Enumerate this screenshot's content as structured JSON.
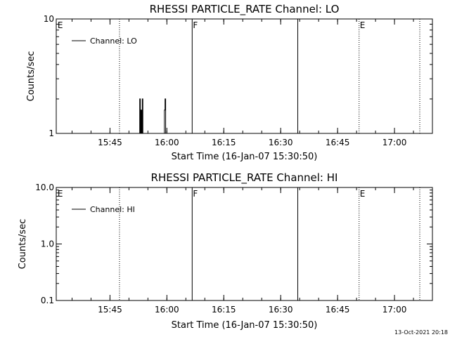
{
  "chart_data": [
    {
      "type": "line",
      "title": "RHESSI PARTICLE_RATE Channel: LO",
      "xlabel": "Start Time (16-Jan-07 15:30:50)",
      "ylabel": "Counts/sec",
      "yscale": "log",
      "ylim": [
        1,
        10
      ],
      "xlim": [
        "15:30:50",
        "17:10:00"
      ],
      "x_ticks": [
        "15:45",
        "16:00",
        "16:15",
        "16:30",
        "16:45",
        "17:00"
      ],
      "y_ticks": [
        "1",
        "10"
      ],
      "legend": {
        "placement": "top-left",
        "entries": [
          "Channel: LO"
        ]
      },
      "grid": false,
      "markers": [
        {
          "time": "15:31:00",
          "label": "E",
          "style": "none"
        },
        {
          "time": "15:47:30",
          "label": "",
          "style": "dotted"
        },
        {
          "time": "16:06:40",
          "label": "F",
          "style": "solid"
        },
        {
          "time": "16:34:30",
          "label": "",
          "style": "solid"
        },
        {
          "time": "16:50:40",
          "label": "E",
          "style": "dotted"
        },
        {
          "time": "17:06:40",
          "label": "",
          "style": "dotted"
        }
      ],
      "series": [
        {
          "name": "Channel: LO",
          "points": [
            [
              "15:52:50",
              1
            ],
            [
              "15:52:50",
              2
            ],
            [
              "15:53:00",
              2
            ],
            [
              "15:53:00",
              1
            ],
            [
              "15:53:10",
              1
            ],
            [
              "15:53:10",
              1.6
            ],
            [
              "15:53:20",
              1.6
            ],
            [
              "15:53:20",
              1
            ],
            [
              "15:53:30",
              1
            ],
            [
              "15:53:30",
              2
            ],
            [
              "15:53:40",
              2
            ],
            [
              "15:53:40",
              1
            ],
            [
              "15:59:20",
              1
            ],
            [
              "15:59:20",
              1.6
            ],
            [
              "15:59:30",
              1.6
            ],
            [
              "15:59:30",
              2
            ],
            [
              "15:59:40",
              2
            ],
            [
              "15:59:40",
              1
            ]
          ]
        }
      ]
    },
    {
      "type": "line",
      "title": "RHESSI PARTICLE_RATE Channel: HI",
      "xlabel": "Start Time (16-Jan-07 15:30:50)",
      "ylabel": "Counts/sec",
      "yscale": "log",
      "ylim": [
        0.1,
        10
      ],
      "xlim": [
        "15:30:50",
        "17:10:00"
      ],
      "x_ticks": [
        "15:45",
        "16:00",
        "16:15",
        "16:30",
        "16:45",
        "17:00"
      ],
      "y_ticks": [
        "0.1",
        "1.0",
        "10.0"
      ],
      "legend": {
        "placement": "top-left",
        "entries": [
          "Channel: HI"
        ]
      },
      "grid": false,
      "markers": [
        {
          "time": "15:31:00",
          "label": "E",
          "style": "none"
        },
        {
          "time": "15:47:30",
          "label": "",
          "style": "dotted"
        },
        {
          "time": "16:06:40",
          "label": "F",
          "style": "solid"
        },
        {
          "time": "16:34:30",
          "label": "",
          "style": "solid"
        },
        {
          "time": "16:50:40",
          "label": "E",
          "style": "dotted"
        },
        {
          "time": "17:06:40",
          "label": "",
          "style": "dotted"
        }
      ],
      "series": [
        {
          "name": "Channel: HI",
          "points": []
        }
      ]
    }
  ],
  "footer": {
    "timestamp": "13-Oct-2021 20:18"
  }
}
